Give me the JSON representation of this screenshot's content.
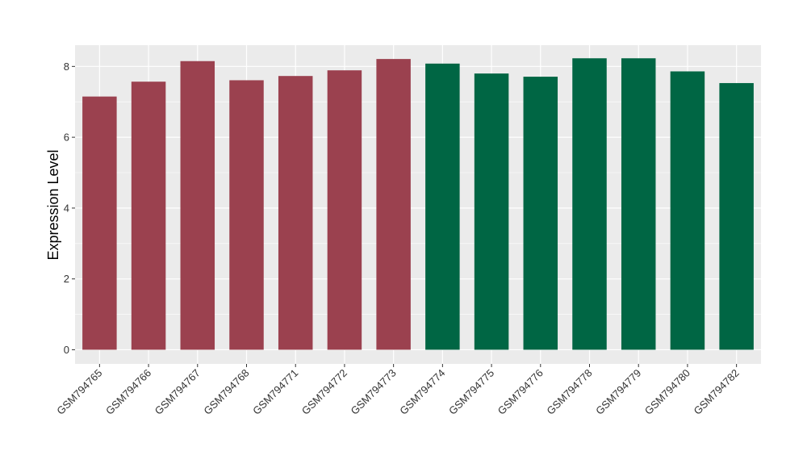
{
  "chart_data": {
    "type": "bar",
    "title": "",
    "xlabel": "",
    "ylabel": "Expression Level",
    "ylim": [
      -0.4,
      8.6
    ],
    "yticks": [
      0,
      2,
      4,
      6,
      8
    ],
    "yticks_text": [
      "0",
      "2",
      "4",
      "6",
      "8"
    ],
    "grid": true,
    "legend": "none",
    "categories": [
      "GSM794765",
      "GSM794766",
      "GSM794767",
      "GSM794768",
      "GSM794771",
      "GSM794772",
      "GSM794773",
      "GSM794774",
      "GSM794775",
      "GSM794776",
      "GSM794778",
      "GSM794779",
      "GSM794780",
      "GSM794782"
    ],
    "values": [
      7.15,
      7.57,
      8.15,
      7.61,
      7.73,
      7.89,
      8.21,
      8.08,
      7.8,
      7.71,
      8.23,
      8.23,
      7.86,
      7.53
    ],
    "bar_colors": [
      "#9b414f",
      "#9b414f",
      "#9b414f",
      "#9b414f",
      "#9b414f",
      "#9b414f",
      "#9b414f",
      "#006644",
      "#006644",
      "#006644",
      "#006644",
      "#006644",
      "#006644",
      "#006644"
    ],
    "panel_color": "#ebebeb",
    "gridline_color": "#ffffff"
  }
}
